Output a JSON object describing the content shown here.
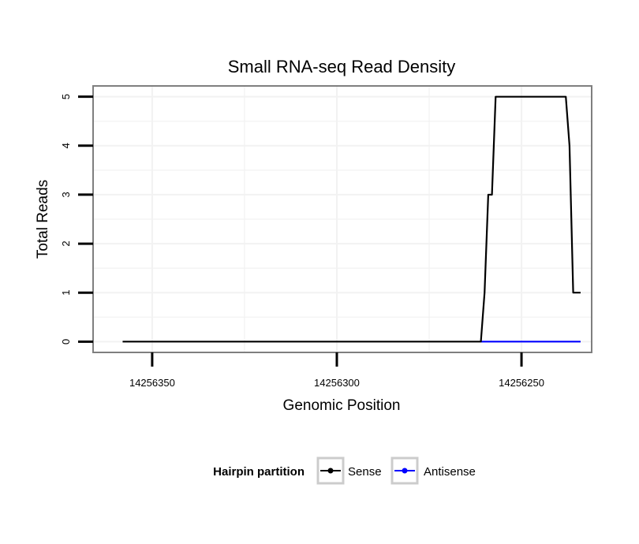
{
  "chart_data": {
    "type": "line",
    "title": "Small RNA-seq Read Density",
    "xlabel": "Genomic Position",
    "ylabel": "Total Reads",
    "x_reversed": true,
    "xlim": [
      14256366,
      14256231
    ],
    "ylim": [
      -0.22,
      5.22
    ],
    "x_ticks": [
      14256350,
      14256300,
      14256250
    ],
    "x_tick_labels": [
      "14256350",
      "14256300",
      "14256250"
    ],
    "y_ticks": [
      0,
      1,
      2,
      3,
      4,
      5
    ],
    "y_tick_labels": [
      "0",
      "1",
      "2",
      "3",
      "4",
      "5"
    ],
    "grid": true,
    "legend": {
      "title": "Hairpin partition",
      "position": "bottom",
      "entries": [
        {
          "name": "Sense",
          "color": "#000000"
        },
        {
          "name": "Antisense",
          "color": "#0000ff"
        }
      ]
    },
    "series": [
      {
        "name": "Sense",
        "color": "#000000",
        "x": [
          14256358,
          14256261,
          14256260,
          14256259,
          14256258,
          14256257,
          14256256,
          14256238,
          14256237,
          14256236,
          14256235,
          14256234
        ],
        "y": [
          0,
          0,
          1,
          3,
          3,
          5,
          5,
          5,
          4,
          1,
          1,
          1
        ]
      },
      {
        "name": "Antisense",
        "color": "#0000ff",
        "x": [
          14256261,
          14256234
        ],
        "y": [
          0,
          0
        ]
      }
    ]
  }
}
